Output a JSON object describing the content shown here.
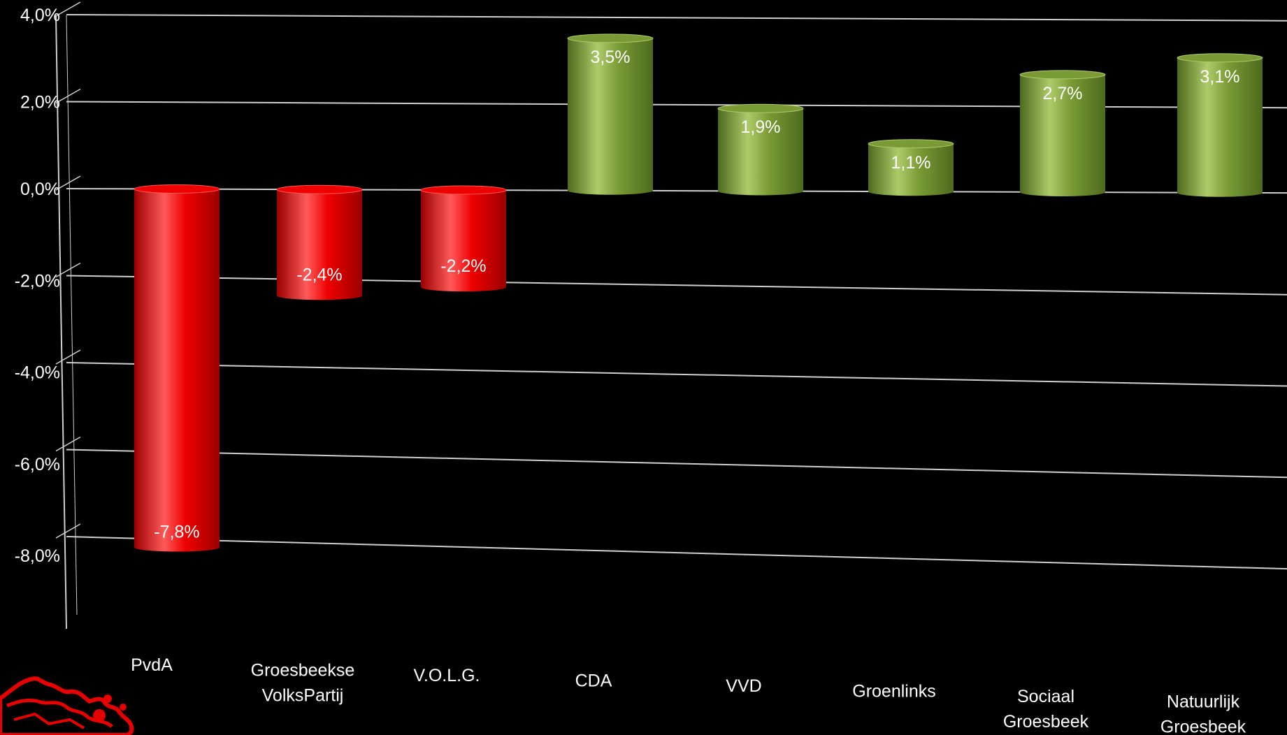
{
  "chart_data": {
    "type": "bar",
    "style": "3d-cylinder",
    "categories": [
      "PvdA",
      "Groesbeekse\nVolksPartij",
      "V.O.L.G.",
      "CDA",
      "VVD",
      "Groenlinks",
      "Sociaal\nGroesbeek",
      "Natuurlijk\nGroesbeek"
    ],
    "values": [
      -7.8,
      -2.4,
      -2.2,
      3.5,
      1.9,
      1.1,
      2.7,
      3.1
    ],
    "data_labels": [
      "-7,8%",
      "-2,4%",
      "-2,2%",
      "3,5%",
      "1,9%",
      "1,1%",
      "2,7%",
      "3,1%"
    ],
    "y_ticks": [
      "4,0%",
      "2,0%",
      "0,0%",
      "-2,0%",
      "-4,0%",
      "-6,0%",
      "-8,0%"
    ],
    "y_tick_values": [
      4,
      2,
      0,
      -2,
      -4,
      -6,
      -8
    ],
    "ylim": [
      -8,
      4
    ],
    "title": "",
    "xlabel": "",
    "ylabel": "",
    "grid": true,
    "colors": {
      "negative": "#ee0000",
      "negative_light": "#ff5a5a",
      "negative_dark": "#9a0000",
      "positive": "#7a9a35",
      "positive_light": "#aecb6a",
      "positive_dark": "#4e6a1e",
      "grid": "#cfcfcf",
      "background": "#000000",
      "text": "#ffffff"
    }
  },
  "logo": {
    "icon": "province-map-logo-icon",
    "color": "#e60000"
  }
}
